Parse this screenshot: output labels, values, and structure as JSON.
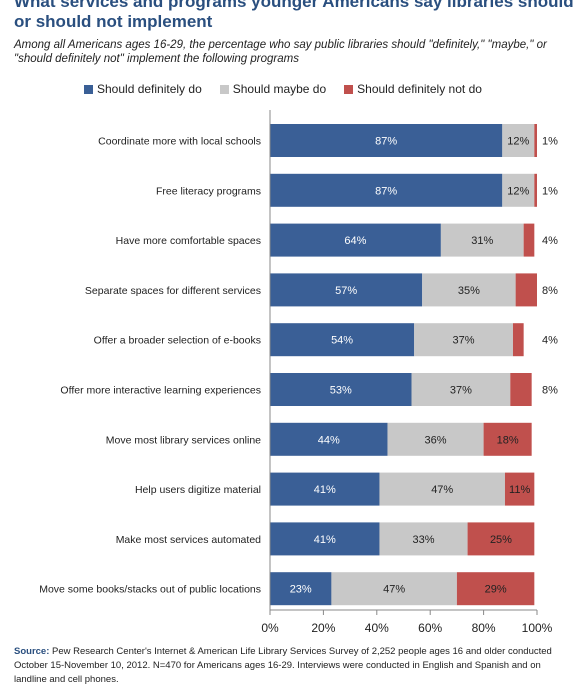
{
  "page": {
    "title": "What services and programs younger Americans say libraries should or should not implement",
    "subtitle": "Among all Americans ages 16-29, the percentage who say public libraries should \"definitely,\" \"maybe,\" or \"should definitely not\" implement the following programs",
    "source_label": "Source:",
    "source_text": "Pew Research Center's Internet & American Life Library Services Survey of 2,252 people ages 16 and older conducted October 15-November 10, 2012. N=470 for Americans ages 16-29. Interviews were conducted in English and Spanish and on landline and cell phones."
  },
  "chart_data": {
    "type": "bar",
    "orientation": "horizontal",
    "stacked": true,
    "categories": [
      "Coordinate more with local schools",
      "Free literacy programs",
      "Have more comfortable spaces",
      "Separate spaces for different services",
      "Offer a broader selection of e-books",
      "Offer more interactive learning experiences",
      "Move most library services online",
      "Help users digitize material",
      "Make most services automated",
      "Move some books/stacks out of public locations"
    ],
    "series": [
      {
        "name": "Should definitely do",
        "color": "#3a5f96",
        "values": [
          87,
          87,
          64,
          57,
          54,
          53,
          44,
          41,
          41,
          23
        ]
      },
      {
        "name": "Should maybe do",
        "color": "#c8c8c8",
        "values": [
          12,
          12,
          31,
          35,
          37,
          37,
          36,
          47,
          33,
          47
        ]
      },
      {
        "name": "Should definitely not do",
        "color": "#c0504d",
        "values": [
          1,
          1,
          4,
          8,
          4,
          8,
          18,
          11,
          25,
          29
        ]
      }
    ],
    "xlim": [
      0,
      100
    ],
    "x_ticks": [
      "0%",
      "20%",
      "40%",
      "60%",
      "80%",
      "100%"
    ],
    "legend_position": "top",
    "grid": false
  }
}
